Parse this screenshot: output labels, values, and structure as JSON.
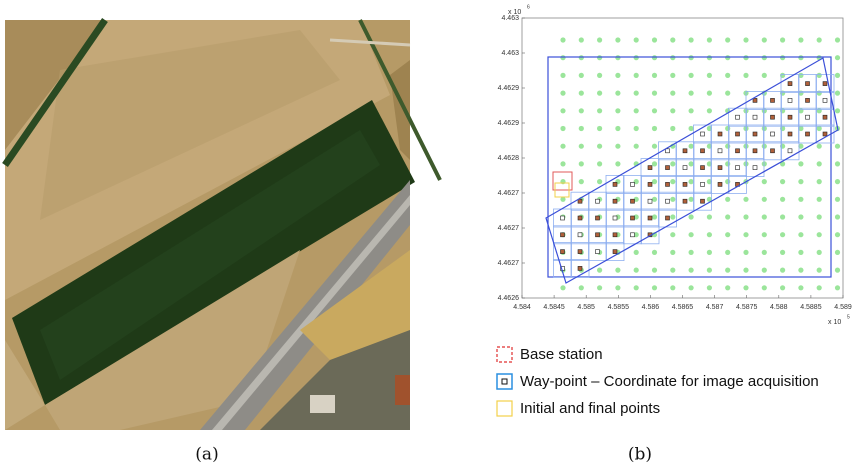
{
  "figure": {
    "panels": [
      {
        "caption": "(a)"
      },
      {
        "caption": "(b)"
      }
    ],
    "plot": {
      "y_multiplier": {
        "base": "x 10",
        "power": "6"
      },
      "x_multiplier": {
        "base": "x 10",
        "power": "5"
      },
      "yticks": [
        "4.463",
        "4.463",
        "4.4629",
        "4.4629",
        "4.4628",
        "4.4627",
        "4.4627",
        "4.4627",
        "4.4626"
      ],
      "xticks": [
        "4.584",
        "4.5845",
        "4.585",
        "4.5855",
        "4.586",
        "4.5865",
        "4.587",
        "4.5875",
        "4.588",
        "4.5885",
        "4.589"
      ]
    },
    "legend": [
      {
        "label": "Base station"
      },
      {
        "label": "Way-point – Coordinate for image acquisition"
      },
      {
        "label": "Initial and final points"
      }
    ]
  }
}
